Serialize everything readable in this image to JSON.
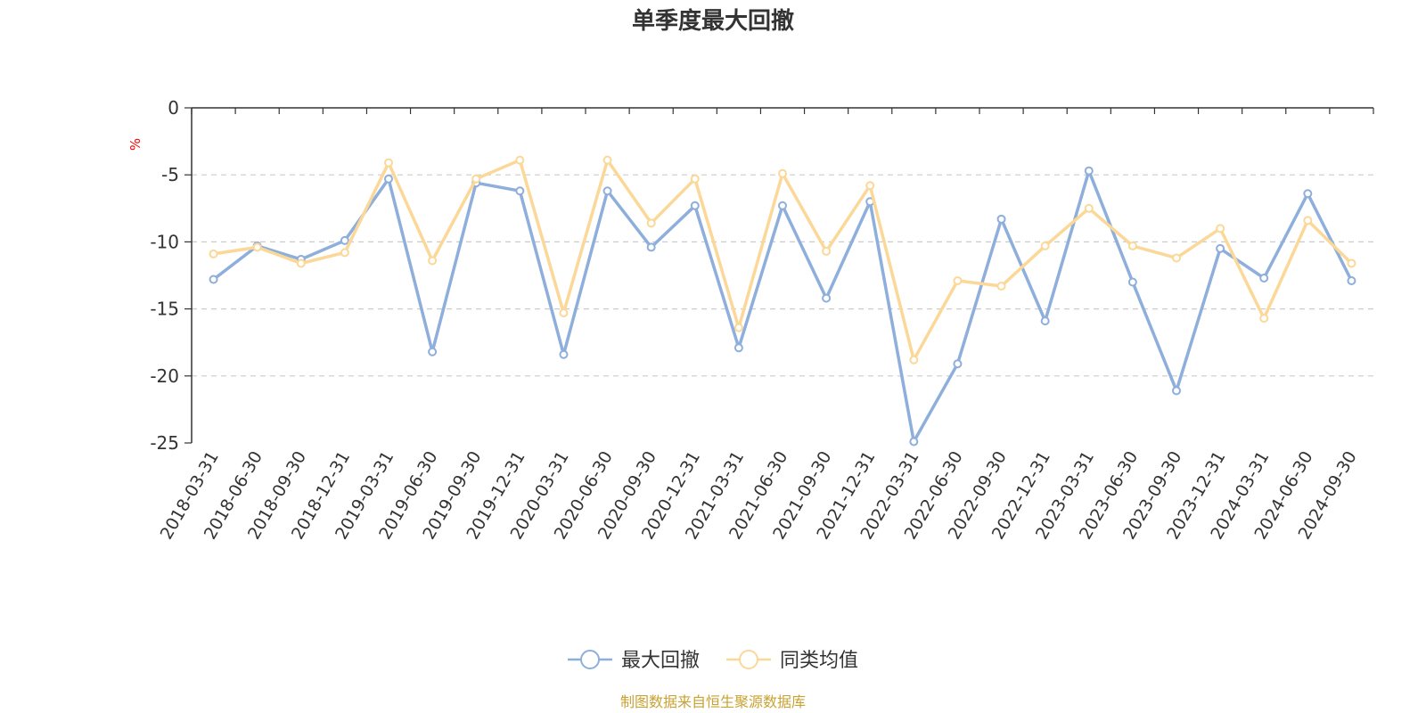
{
  "chart_data": {
    "type": "line",
    "title": "单季度最大回撤",
    "ylabel": "%",
    "ylim": [
      -25,
      0
    ],
    "yticks": [
      0,
      -5,
      -10,
      -15,
      -20,
      -25
    ],
    "grid": true,
    "legend_position": "bottom-center",
    "categories": [
      "2018-03-31",
      "2018-06-30",
      "2018-09-30",
      "2018-12-31",
      "2019-03-31",
      "2019-06-30",
      "2019-09-30",
      "2019-12-31",
      "2020-03-31",
      "2020-06-30",
      "2020-09-30",
      "2020-12-31",
      "2021-03-31",
      "2021-06-30",
      "2021-09-30",
      "2021-12-31",
      "2022-03-31",
      "2022-06-30",
      "2022-09-30",
      "2022-12-31",
      "2023-03-31",
      "2023-06-30",
      "2023-09-30",
      "2023-12-31",
      "2024-03-31",
      "2024-06-30",
      "2024-09-30"
    ],
    "series": [
      {
        "name": "最大回撤",
        "color": "#8eaedb",
        "values": [
          -12.8,
          -10.3,
          -11.3,
          -9.9,
          -5.3,
          -18.2,
          -5.6,
          -6.2,
          -18.4,
          -6.2,
          -10.4,
          -7.3,
          -17.9,
          -7.3,
          -14.2,
          -7.0,
          -24.9,
          -19.1,
          -8.3,
          -15.9,
          -4.7,
          -13.0,
          -21.1,
          -10.5,
          -12.7,
          -6.4,
          -12.9
        ]
      },
      {
        "name": "同类均值",
        "color": "#fbd898",
        "values": [
          -10.9,
          -10.4,
          -11.6,
          -10.8,
          -4.1,
          -11.4,
          -5.3,
          -3.9,
          -15.3,
          -3.9,
          -8.6,
          -5.3,
          -16.4,
          -4.9,
          -10.7,
          -5.8,
          -18.8,
          -12.9,
          -13.3,
          -10.3,
          -7.5,
          -10.3,
          -11.2,
          -9.0,
          -15.7,
          -8.4,
          -11.6
        ]
      }
    ],
    "source_note": "制图数据来自恒生聚源数据库"
  },
  "colors": {
    "axis": "#333333",
    "grid": "#cccccc",
    "unit": "#ff0000",
    "source": "#c8a232"
  }
}
